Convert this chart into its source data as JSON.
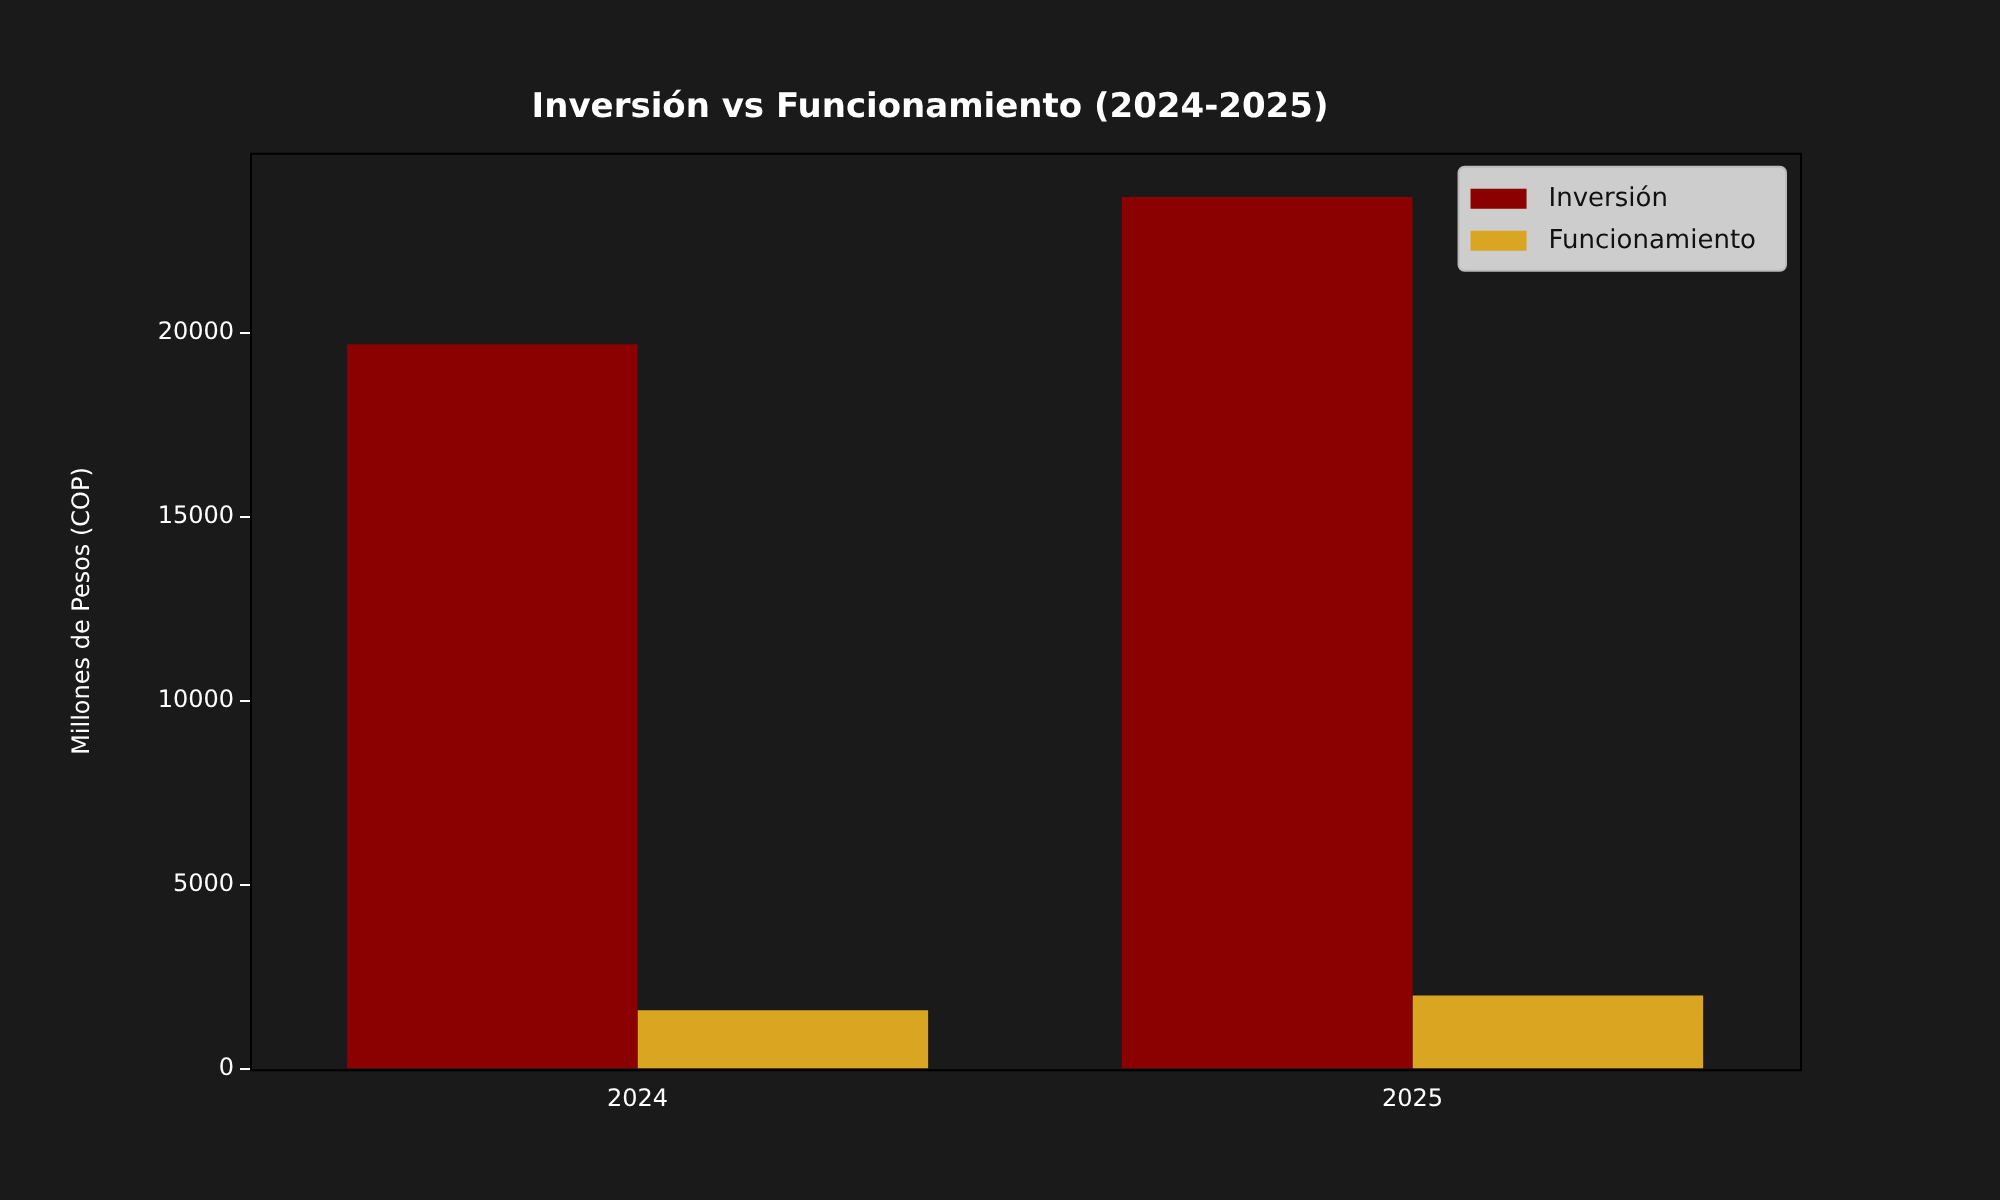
{
  "chart_data": {
    "type": "bar",
    "title": "Inversión vs Funcionamiento (2024-2025)",
    "ylabel": "Millones de Pesos (COP)",
    "categories": [
      "2024",
      "2025"
    ],
    "series": [
      {
        "name": "Inversión",
        "color": "#8b0000",
        "values": [
          19700,
          23700
        ]
      },
      {
        "name": "Funcionamiento",
        "color": "#daa520",
        "values": [
          1600,
          2000
        ]
      }
    ],
    "ylim": [
      0,
      24900
    ],
    "yticks": [
      0,
      5000,
      10000,
      15000,
      20000
    ],
    "grid": false,
    "legend": "top right"
  }
}
